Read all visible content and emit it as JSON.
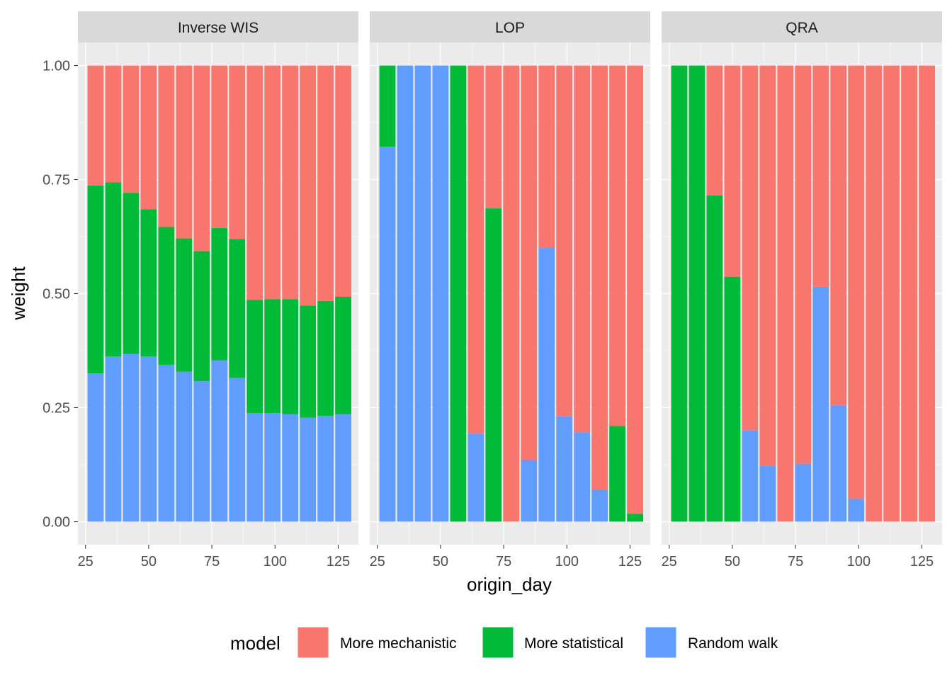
{
  "chart_data": {
    "type": "bar",
    "stacked": true,
    "facet_by": "method",
    "xlabel": "origin_day",
    "ylabel": "weight",
    "xlim": [
      22,
      133
    ],
    "ylim": [
      -0.0505,
      1.0505
    ],
    "x_ticks": [
      25,
      50,
      75,
      100,
      125
    ],
    "y_ticks": [
      0,
      0.25,
      0.5,
      0.75,
      1
    ],
    "y_tick_labels": [
      "0.00",
      "0.25",
      "0.50",
      "0.75",
      "1.00"
    ],
    "bar_width": 6.4,
    "x": [
      29,
      36,
      43,
      50,
      57,
      64,
      71,
      78,
      85,
      92,
      99,
      106,
      113,
      120,
      127
    ],
    "legend": {
      "title": "model",
      "position": "bottom",
      "entries": [
        "More mechanistic",
        "More statistical",
        "Random walk"
      ]
    },
    "colors": {
      "More mechanistic": "#F8766D",
      "More statistical": "#00BA38",
      "Random walk": "#619CFF"
    },
    "grid": true,
    "panel_background": "#EBEBEB",
    "strip_background": "#D9D9D9",
    "facets": [
      {
        "title": "Inverse WIS",
        "series": [
          {
            "name": "Random walk",
            "values": [
              0.325,
              0.362,
              0.368,
              0.362,
              0.344,
              0.329,
              0.308,
              0.354,
              0.315,
              0.238,
              0.238,
              0.236,
              0.228,
              0.232,
              0.236
            ]
          },
          {
            "name": "More statistical",
            "values": [
              0.412,
              0.382,
              0.353,
              0.323,
              0.302,
              0.292,
              0.285,
              0.29,
              0.305,
              0.248,
              0.25,
              0.252,
              0.246,
              0.252,
              0.257
            ]
          },
          {
            "name": "More mechanistic",
            "values": [
              0.263,
              0.256,
              0.279,
              0.315,
              0.354,
              0.379,
              0.407,
              0.356,
              0.38,
              0.514,
              0.512,
              0.512,
              0.526,
              0.516,
              0.507
            ]
          }
        ]
      },
      {
        "title": "LOP",
        "series": [
          {
            "name": "Random walk",
            "values": [
              0.822,
              1.0,
              1.0,
              1.0,
              0.0,
              0.193,
              0.0,
              0.0,
              0.135,
              0.6,
              0.231,
              0.196,
              0.07,
              0.0,
              0.0
            ]
          },
          {
            "name": "More statistical",
            "values": [
              0.178,
              0.0,
              0.0,
              0.0,
              1.0,
              0.0,
              0.687,
              0.0,
              0.0,
              0.0,
              0.0,
              0.0,
              0.0,
              0.21,
              0.017
            ]
          },
          {
            "name": "More mechanistic",
            "values": [
              0.0,
              0.0,
              0.0,
              0.0,
              0.0,
              0.807,
              0.313,
              1.0,
              0.865,
              0.4,
              0.769,
              0.804,
              0.93,
              0.79,
              0.983
            ]
          }
        ]
      },
      {
        "title": "QRA",
        "series": [
          {
            "name": "Random walk",
            "values": [
              0.0,
              0.0,
              0.0,
              0.0,
              0.2,
              0.123,
              0.0,
              0.127,
              0.515,
              0.255,
              0.05,
              0.0,
              0.0,
              0.0,
              0.0
            ]
          },
          {
            "name": "More statistical",
            "values": [
              1.0,
              1.0,
              0.715,
              0.537,
              0.0,
              0.0,
              0.0,
              0.0,
              0.0,
              0.0,
              0.0,
              0.0,
              0.0,
              0.0,
              0.0
            ]
          },
          {
            "name": "More mechanistic",
            "values": [
              0.0,
              0.0,
              0.285,
              0.463,
              0.8,
              0.877,
              1.0,
              0.873,
              0.485,
              0.745,
              0.95,
              1.0,
              1.0,
              1.0,
              1.0
            ]
          }
        ]
      }
    ]
  }
}
